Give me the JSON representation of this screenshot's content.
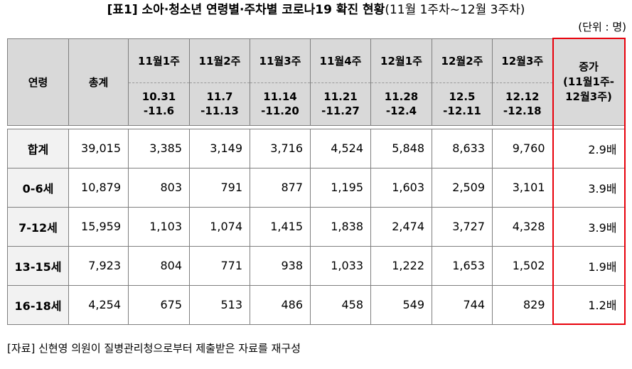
{
  "title": {
    "bold": "[표1] 소아·청소년 연령별·주차별 코로나19 확진 현황",
    "normal": "(11월 1주차~12월 3주차)"
  },
  "unit": "(단위 : 명)",
  "table": {
    "header_age": "연령",
    "header_total": "총계",
    "header_increase": "증가\n(11월1주-\n12월3주)",
    "weeks": [
      {
        "label": "11월1주",
        "dates": "10.31\n-11.6"
      },
      {
        "label": "11월2주",
        "dates": "11.7\n-11.13"
      },
      {
        "label": "11월3주",
        "dates": "11.14\n-11.20"
      },
      {
        "label": "11월4주",
        "dates": "11.21\n-11.27"
      },
      {
        "label": "12월1주",
        "dates": "11.28\n-12.4"
      },
      {
        "label": "12월2주",
        "dates": "12.5\n-12.11"
      },
      {
        "label": "12월3주",
        "dates": "12.12\n-12.18"
      }
    ],
    "rows": [
      {
        "age": "합계",
        "total": "39,015",
        "weekly": [
          "3,385",
          "3,149",
          "3,716",
          "4,524",
          "5,848",
          "8,633",
          "9,760"
        ],
        "increase": "2.9배"
      },
      {
        "age": "0-6세",
        "total": "10,879",
        "weekly": [
          "803",
          "791",
          "877",
          "1,195",
          "1,603",
          "2,509",
          "3,101"
        ],
        "increase": "3.9배"
      },
      {
        "age": "7-12세",
        "total": "15,959",
        "weekly": [
          "1,103",
          "1,074",
          "1,415",
          "1,838",
          "2,474",
          "3,727",
          "4,328"
        ],
        "increase": "3.9배"
      },
      {
        "age": "13-15세",
        "total": "7,923",
        "weekly": [
          "804",
          "771",
          "938",
          "1,033",
          "1,222",
          "1,653",
          "1,502"
        ],
        "increase": "1.9배"
      },
      {
        "age": "16-18세",
        "total": "4,254",
        "weekly": [
          "675",
          "513",
          "486",
          "458",
          "549",
          "744",
          "829"
        ],
        "increase": "1.2배"
      }
    ]
  },
  "source": "[자료] 신현영 의원이 질병관리청으로부터 제출받은 자료를 재구성",
  "colors": {
    "header_bg": "#d9d9d9",
    "label_bg": "#f2f2f2",
    "highlight": "#e8000b"
  }
}
